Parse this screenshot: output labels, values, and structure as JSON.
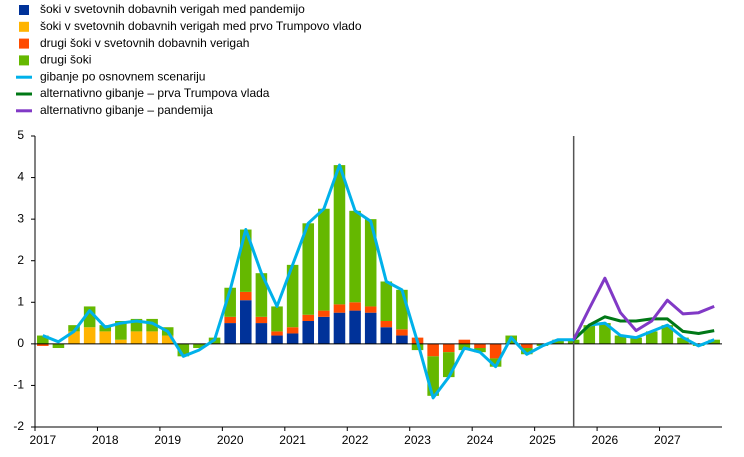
{
  "chart_data": {
    "type": "bar",
    "categories": [
      "2017",
      null,
      null,
      null,
      "2018",
      null,
      null,
      null,
      "2019",
      null,
      null,
      null,
      "2020",
      null,
      null,
      null,
      "2021",
      null,
      null,
      null,
      "2022",
      null,
      null,
      null,
      "2023",
      null,
      null,
      null,
      "2024",
      null,
      null,
      null,
      "2025",
      null,
      null,
      null,
      "2026",
      null,
      null,
      null,
      "2027",
      null,
      null,
      null
    ],
    "ylim": [
      -2,
      5
    ],
    "yticks": [
      -2,
      -1,
      0,
      1,
      2,
      3,
      4,
      5
    ],
    "series": [
      {
        "name": "šoki v svetovnih dobavnih verigah med pandemijo",
        "color": "#003299",
        "kind": "bar",
        "values": [
          0,
          0,
          0,
          0,
          0,
          0,
          0,
          0,
          0,
          0,
          0,
          0,
          0.5,
          1.05,
          0.5,
          0.2,
          0.25,
          0.55,
          0.65,
          0.75,
          0.8,
          0.75,
          0.4,
          0.2,
          0,
          0,
          0,
          0,
          0,
          0,
          0,
          0,
          0,
          0,
          0,
          0,
          0,
          0,
          0,
          0,
          0,
          0,
          0,
          0
        ]
      },
      {
        "name": "šoki v svetovnih dobavnih verigah med prvo Trumpovo vlado",
        "color": "#ffb400",
        "kind": "bar",
        "values": [
          0,
          0,
          0.3,
          0.4,
          0.3,
          0.1,
          0.3,
          0.3,
          0.2,
          0,
          0,
          0,
          0,
          0,
          0,
          0,
          0,
          0,
          0,
          0,
          0,
          0,
          0,
          0,
          0,
          0,
          0,
          0,
          0,
          0,
          0,
          0,
          0,
          0,
          0,
          0,
          0,
          0,
          0,
          0,
          0,
          0,
          0,
          0
        ]
      },
      {
        "name": "drugi šoki v svetovnih dobavnih verigah",
        "color": "#ff4b00",
        "kind": "bar",
        "values": [
          -0.05,
          0,
          0,
          0,
          0,
          0,
          0,
          0,
          0,
          0,
          0,
          0,
          0.15,
          0.2,
          0.15,
          0.1,
          0.15,
          0.15,
          0.15,
          0.2,
          0.2,
          0.15,
          0.15,
          0.15,
          0.15,
          -0.3,
          -0.2,
          0.1,
          -0.1,
          -0.35,
          0,
          -0.1,
          0,
          0,
          0,
          0,
          0,
          0,
          0,
          0,
          0,
          0,
          0,
          0
        ]
      },
      {
        "name": "drugi šoki",
        "color": "#65b800",
        "kind": "bar",
        "values": [
          0.2,
          -0.1,
          0.15,
          0.5,
          0.15,
          0.45,
          0.3,
          0.3,
          0.2,
          -0.3,
          -0.1,
          0.15,
          0.7,
          1.5,
          1.05,
          0.6,
          1.5,
          2.2,
          2.45,
          3.35,
          2.2,
          2.1,
          0.95,
          0.95,
          -0.15,
          -0.95,
          -0.6,
          -0.15,
          -0.1,
          -0.2,
          0.2,
          -0.15,
          -0.05,
          0.1,
          0.1,
          0.45,
          0.5,
          0.2,
          0.15,
          0.3,
          0.45,
          0.15,
          -0.05,
          0.1
        ]
      },
      {
        "name": "gibanje po osnovnem scenariju",
        "color": "#00b1ea",
        "kind": "line",
        "values": [
          0.2,
          0.05,
          0.3,
          0.8,
          0.4,
          0.5,
          0.55,
          0.5,
          0.3,
          -0.3,
          -0.15,
          0.1,
          1.3,
          2.75,
          1.7,
          0.9,
          1.9,
          2.9,
          3.25,
          4.3,
          3.2,
          2.95,
          1.5,
          1.3,
          0.05,
          -1.3,
          -0.8,
          -0.1,
          -0.2,
          -0.55,
          0.15,
          -0.25,
          -0.05,
          0.1,
          0.1,
          0.45,
          0.5,
          0.2,
          0.15,
          0.3,
          0.45,
          0.15,
          -0.05,
          0.1
        ]
      },
      {
        "name": "alternativno gibanje – prva Trumpova vlada",
        "color": "#007816",
        "kind": "line",
        "values": [
          null,
          null,
          null,
          null,
          null,
          null,
          null,
          null,
          null,
          null,
          null,
          null,
          null,
          null,
          null,
          null,
          null,
          null,
          null,
          null,
          null,
          null,
          null,
          null,
          null,
          null,
          null,
          null,
          null,
          null,
          null,
          null,
          null,
          null,
          0.1,
          0.45,
          0.65,
          0.55,
          0.55,
          0.6,
          0.6,
          0.3,
          0.25,
          0.32
        ]
      },
      {
        "name": "alternativno gibanje – pandemija",
        "color": "#8139c6",
        "kind": "line",
        "values": [
          null,
          null,
          null,
          null,
          null,
          null,
          null,
          null,
          null,
          null,
          null,
          null,
          null,
          null,
          null,
          null,
          null,
          null,
          null,
          null,
          null,
          null,
          null,
          null,
          null,
          null,
          null,
          null,
          null,
          null,
          null,
          null,
          null,
          null,
          0.1,
          0.85,
          1.58,
          0.75,
          0.32,
          0.55,
          1.05,
          0.72,
          0.75,
          0.9
        ]
      }
    ]
  }
}
